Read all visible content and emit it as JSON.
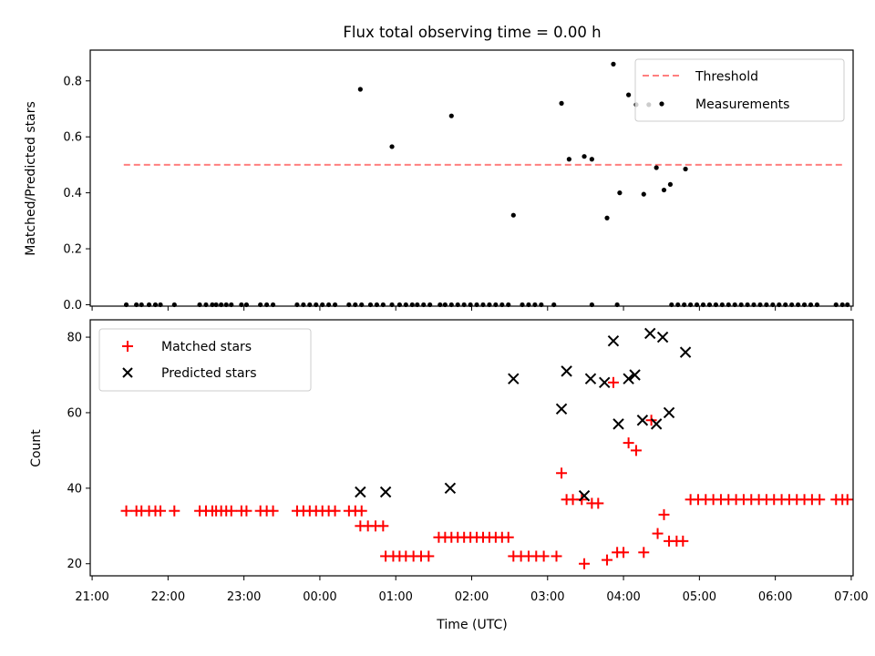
{
  "chart_data": [
    {
      "type": "scatter",
      "title": "Flux total observing time = 0.00 h",
      "xlabel": "",
      "ylabel": "Matched/Predicted stars",
      "xlim": [
        "21:00",
        "07:00"
      ],
      "ylim": [
        0,
        0.9
      ],
      "yticks": [
        "0.0",
        "0.2",
        "0.4",
        "0.6",
        "0.8"
      ],
      "legend_position": "top-right",
      "legend": [
        "Threshold",
        "Measurements"
      ],
      "threshold": {
        "name": "Threshold",
        "value": 0.5,
        "x_start": "21:25",
        "x_end": "06:55",
        "color": "#ff7f7f",
        "style": "dashed"
      },
      "series": [
        {
          "name": "Measurements",
          "color": "#000000",
          "marker": "dot",
          "points": [
            [
              "21:27",
              0
            ],
            [
              "21:35",
              0
            ],
            [
              "21:39",
              0
            ],
            [
              "21:45",
              0
            ],
            [
              "21:50",
              0
            ],
            [
              "21:54",
              0
            ],
            [
              "22:05",
              0
            ],
            [
              "22:25",
              0
            ],
            [
              "22:30",
              0
            ],
            [
              "22:35",
              0
            ],
            [
              "22:38",
              0
            ],
            [
              "22:42",
              0
            ],
            [
              "22:46",
              0
            ],
            [
              "22:50",
              0
            ],
            [
              "22:58",
              0
            ],
            [
              "23:02",
              0
            ],
            [
              "23:13",
              0
            ],
            [
              "23:18",
              0
            ],
            [
              "23:23",
              0
            ],
            [
              "23:42",
              0
            ],
            [
              "23:47",
              0
            ],
            [
              "23:52",
              0
            ],
            [
              "23:57",
              0
            ],
            [
              "00:02",
              0
            ],
            [
              "00:07",
              0
            ],
            [
              "00:12",
              0
            ],
            [
              "00:23",
              0
            ],
            [
              "00:28",
              0
            ],
            [
              "00:33",
              0
            ],
            [
              "00:40",
              0
            ],
            [
              "00:45",
              0
            ],
            [
              "00:50",
              0
            ],
            [
              "00:57",
              0
            ],
            [
              "01:03",
              0
            ],
            [
              "01:08",
              0
            ],
            [
              "01:13",
              0
            ],
            [
              "01:17",
              0
            ],
            [
              "01:22",
              0
            ],
            [
              "01:27",
              0
            ],
            [
              "01:35",
              0
            ],
            [
              "01:39",
              0
            ],
            [
              "01:44",
              0
            ],
            [
              "01:49",
              0
            ],
            [
              "01:54",
              0
            ],
            [
              "01:59",
              0
            ],
            [
              "02:04",
              0
            ],
            [
              "02:09",
              0
            ],
            [
              "02:14",
              0
            ],
            [
              "02:19",
              0
            ],
            [
              "02:24",
              0
            ],
            [
              "02:29",
              0
            ],
            [
              "02:40",
              0
            ],
            [
              "02:45",
              0
            ],
            [
              "02:50",
              0
            ],
            [
              "02:55",
              0
            ],
            [
              "03:05",
              0
            ],
            [
              "03:35",
              0
            ],
            [
              "03:55",
              0
            ],
            [
              "04:38",
              0
            ],
            [
              "04:43",
              0
            ],
            [
              "04:48",
              0
            ],
            [
              "04:53",
              0
            ],
            [
              "04:58",
              0
            ],
            [
              "05:03",
              0
            ],
            [
              "05:08",
              0
            ],
            [
              "05:13",
              0
            ],
            [
              "05:18",
              0
            ],
            [
              "05:23",
              0
            ],
            [
              "05:28",
              0
            ],
            [
              "05:33",
              0
            ],
            [
              "05:38",
              0
            ],
            [
              "05:43",
              0
            ],
            [
              "05:48",
              0
            ],
            [
              "05:53",
              0
            ],
            [
              "05:58",
              0
            ],
            [
              "06:03",
              0
            ],
            [
              "06:08",
              0
            ],
            [
              "06:13",
              0
            ],
            [
              "06:18",
              0
            ],
            [
              "06:23",
              0
            ],
            [
              "06:28",
              0
            ],
            [
              "06:33",
              0
            ],
            [
              "06:48",
              0
            ],
            [
              "06:53",
              0
            ],
            [
              "06:57",
              0
            ],
            [
              "00:32",
              0.77
            ],
            [
              "00:57",
              0.565
            ],
            [
              "01:44",
              0.675
            ],
            [
              "02:33",
              0.32
            ],
            [
              "03:11",
              0.72
            ],
            [
              "03:17",
              0.52
            ],
            [
              "03:29",
              0.53
            ],
            [
              "03:35",
              0.52
            ],
            [
              "03:47",
              0.31
            ],
            [
              "03:52",
              0.86
            ],
            [
              "03:57",
              0.4
            ],
            [
              "04:04",
              0.75
            ],
            [
              "04:10",
              0.715
            ],
            [
              "04:16",
              0.395
            ],
            [
              "04:20",
              0.715
            ],
            [
              "04:26",
              0.49
            ],
            [
              "04:32",
              0.41
            ],
            [
              "04:37",
              0.43
            ],
            [
              "04:49",
              0.485
            ]
          ]
        }
      ]
    },
    {
      "type": "scatter",
      "title": "",
      "xlabel": "Time (UTC)",
      "ylabel": "Count",
      "xlim": [
        "21:00",
        "07:00"
      ],
      "ylim": [
        17,
        84
      ],
      "yticks": [
        "20",
        "40",
        "60",
        "80"
      ],
      "xticks": [
        "21:00",
        "22:00",
        "23:00",
        "00:00",
        "01:00",
        "02:00",
        "03:00",
        "04:00",
        "05:00",
        "06:00",
        "07:00"
      ],
      "legend_position": "top-left",
      "legend": [
        "Matched stars",
        "Predicted stars"
      ],
      "series": [
        {
          "name": "Matched stars",
          "color": "#ff0000",
          "marker": "plus",
          "points": [
            [
              "21:27",
              34
            ],
            [
              "21:35",
              34
            ],
            [
              "21:39",
              34
            ],
            [
              "21:45",
              34
            ],
            [
              "21:50",
              34
            ],
            [
              "21:54",
              34
            ],
            [
              "22:05",
              34
            ],
            [
              "22:25",
              34
            ],
            [
              "22:30",
              34
            ],
            [
              "22:35",
              34
            ],
            [
              "22:38",
              34
            ],
            [
              "22:42",
              34
            ],
            [
              "22:46",
              34
            ],
            [
              "22:50",
              34
            ],
            [
              "22:58",
              34
            ],
            [
              "23:02",
              34
            ],
            [
              "23:13",
              34
            ],
            [
              "23:18",
              34
            ],
            [
              "23:23",
              34
            ],
            [
              "23:42",
              34
            ],
            [
              "23:47",
              34
            ],
            [
              "23:52",
              34
            ],
            [
              "23:57",
              34
            ],
            [
              "00:02",
              34
            ],
            [
              "00:07",
              34
            ],
            [
              "00:12",
              34
            ],
            [
              "00:23",
              34
            ],
            [
              "00:28",
              34
            ],
            [
              "00:33",
              34
            ],
            [
              "00:32",
              30
            ],
            [
              "00:38",
              30
            ],
            [
              "00:44",
              30
            ],
            [
              "00:50",
              30
            ],
            [
              "00:52",
              22
            ],
            [
              "00:58",
              22
            ],
            [
              "01:03",
              22
            ],
            [
              "01:08",
              22
            ],
            [
              "01:14",
              22
            ],
            [
              "01:20",
              22
            ],
            [
              "01:26",
              22
            ],
            [
              "01:34",
              27
            ],
            [
              "01:39",
              27
            ],
            [
              "01:44",
              27
            ],
            [
              "01:49",
              27
            ],
            [
              "01:54",
              27
            ],
            [
              "01:59",
              27
            ],
            [
              "02:04",
              27
            ],
            [
              "02:09",
              27
            ],
            [
              "02:14",
              27
            ],
            [
              "02:19",
              27
            ],
            [
              "02:24",
              27
            ],
            [
              "02:29",
              27
            ],
            [
              "02:33",
              22
            ],
            [
              "02:39",
              22
            ],
            [
              "02:45",
              22
            ],
            [
              "02:51",
              22
            ],
            [
              "02:57",
              22
            ],
            [
              "03:07",
              22
            ],
            [
              "03:11",
              44
            ],
            [
              "03:15",
              37
            ],
            [
              "03:20",
              37
            ],
            [
              "03:27",
              37
            ],
            [
              "03:35",
              36
            ],
            [
              "03:40",
              36
            ],
            [
              "03:29",
              20
            ],
            [
              "03:47",
              21
            ],
            [
              "03:55",
              23
            ],
            [
              "04:00",
              23
            ],
            [
              "04:16",
              23
            ],
            [
              "03:52",
              68
            ],
            [
              "04:04",
              52
            ],
            [
              "04:10",
              50
            ],
            [
              "04:22",
              58
            ],
            [
              "04:27",
              28
            ],
            [
              "04:32",
              33
            ],
            [
              "04:36",
              26
            ],
            [
              "04:42",
              26
            ],
            [
              "04:47",
              26
            ],
            [
              "04:53",
              37
            ],
            [
              "04:59",
              37
            ],
            [
              "05:05",
              37
            ],
            [
              "05:11",
              37
            ],
            [
              "05:17",
              37
            ],
            [
              "05:23",
              37
            ],
            [
              "05:29",
              37
            ],
            [
              "05:35",
              37
            ],
            [
              "05:41",
              37
            ],
            [
              "05:47",
              37
            ],
            [
              "05:53",
              37
            ],
            [
              "05:59",
              37
            ],
            [
              "06:05",
              37
            ],
            [
              "06:11",
              37
            ],
            [
              "06:17",
              37
            ],
            [
              "06:23",
              37
            ],
            [
              "06:29",
              37
            ],
            [
              "06:35",
              37
            ],
            [
              "06:48",
              37
            ],
            [
              "06:53",
              37
            ],
            [
              "06:57",
              37
            ]
          ]
        },
        {
          "name": "Predicted stars",
          "color": "#000000",
          "marker": "x",
          "points": [
            [
              "00:32",
              39
            ],
            [
              "00:52",
              39
            ],
            [
              "01:43",
              40
            ],
            [
              "02:33",
              69
            ],
            [
              "03:11",
              61
            ],
            [
              "03:15",
              71
            ],
            [
              "03:29",
              38
            ],
            [
              "03:34",
              69
            ],
            [
              "03:45",
              68
            ],
            [
              "03:52",
              79
            ],
            [
              "03:56",
              57
            ],
            [
              "04:04",
              69
            ],
            [
              "04:09",
              70
            ],
            [
              "04:15",
              58
            ],
            [
              "04:21",
              81
            ],
            [
              "04:26",
              57
            ],
            [
              "04:31",
              80
            ],
            [
              "04:36",
              60
            ],
            [
              "04:49",
              76
            ]
          ]
        }
      ]
    }
  ]
}
